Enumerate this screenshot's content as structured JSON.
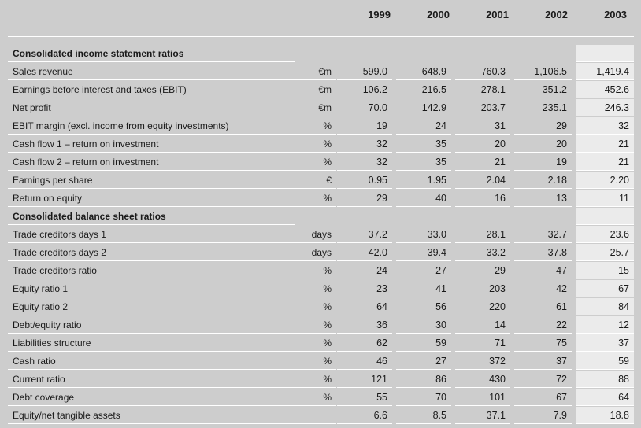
{
  "years": [
    "1999",
    "2000",
    "2001",
    "2002",
    "2003"
  ],
  "rows": [
    {
      "type": "section",
      "label": "Consolidated income statement ratios"
    },
    {
      "type": "data",
      "label": "Sales revenue",
      "unit": "€m",
      "values": [
        "599.0",
        "648.9",
        "760.3",
        "1,106.5",
        "1,419.4"
      ]
    },
    {
      "type": "data",
      "label": "Earnings before interest and taxes (EBIT)",
      "unit": "€m",
      "values": [
        "106.2",
        "216.5",
        "278.1",
        "351.2",
        "452.6"
      ]
    },
    {
      "type": "data",
      "label": "Net profit",
      "unit": "€m",
      "values": [
        "70.0",
        "142.9",
        "203.7",
        "235.1",
        "246.3"
      ]
    },
    {
      "type": "data",
      "label": "EBIT margin (excl. income from equity investments)",
      "unit": "%",
      "values": [
        "19",
        "24",
        "31",
        "29",
        "32"
      ]
    },
    {
      "type": "data",
      "label": "Cash flow 1 – return on investment",
      "unit": "%",
      "values": [
        "32",
        "35",
        "20",
        "20",
        "21"
      ]
    },
    {
      "type": "data",
      "label": "Cash flow 2 – return on investment",
      "unit": "%",
      "values": [
        "32",
        "35",
        "21",
        "19",
        "21"
      ]
    },
    {
      "type": "data",
      "label": "Earnings per share",
      "unit": "€",
      "values": [
        "0.95",
        "1.95",
        "2.04",
        "2.18",
        "2.20"
      ]
    },
    {
      "type": "data",
      "label": "Return on equity",
      "unit": "%",
      "values": [
        "29",
        "40",
        "16",
        "13",
        "11"
      ]
    },
    {
      "type": "section",
      "label": "Consolidated balance sheet ratios"
    },
    {
      "type": "data",
      "label": "Trade creditors days 1",
      "unit": "days",
      "values": [
        "37.2",
        "33.0",
        "28.1",
        "32.7",
        "23.6"
      ]
    },
    {
      "type": "data",
      "label": "Trade creditors days 2",
      "unit": "days",
      "values": [
        "42.0",
        "39.4",
        "33.2",
        "37.8",
        "25.7"
      ]
    },
    {
      "type": "data",
      "label": "Trade creditors ratio",
      "unit": "%",
      "values": [
        "24",
        "27",
        "29",
        "47",
        "15"
      ]
    },
    {
      "type": "data",
      "label": "Equity ratio 1",
      "unit": "%",
      "values": [
        "23",
        "41",
        "203",
        "42",
        "67"
      ]
    },
    {
      "type": "data",
      "label": "Equity ratio 2",
      "unit": "%",
      "values": [
        "64",
        "56",
        "220",
        "61",
        "84"
      ]
    },
    {
      "type": "data",
      "label": "Debt/equity ratio",
      "unit": "%",
      "values": [
        "36",
        "30",
        "14",
        "22",
        "12"
      ]
    },
    {
      "type": "data",
      "label": "Liabilities structure",
      "unit": "%",
      "values": [
        "62",
        "59",
        "71",
        "75",
        "37"
      ]
    },
    {
      "type": "data",
      "label": "Cash ratio",
      "unit": "%",
      "values": [
        "46",
        "27",
        "372",
        "37",
        "59"
      ]
    },
    {
      "type": "data",
      "label": "Current ratio",
      "unit": "%",
      "values": [
        "121",
        "86",
        "430",
        "72",
        "88"
      ]
    },
    {
      "type": "data",
      "label": "Debt coverage",
      "unit": "%",
      "values": [
        "55",
        "70",
        "101",
        "67",
        "64"
      ]
    },
    {
      "type": "data",
      "label": "Equity/net tangible assets",
      "unit": "",
      "values": [
        "6.6",
        "8.5",
        "37.1",
        "7.9",
        "18.8"
      ]
    }
  ]
}
